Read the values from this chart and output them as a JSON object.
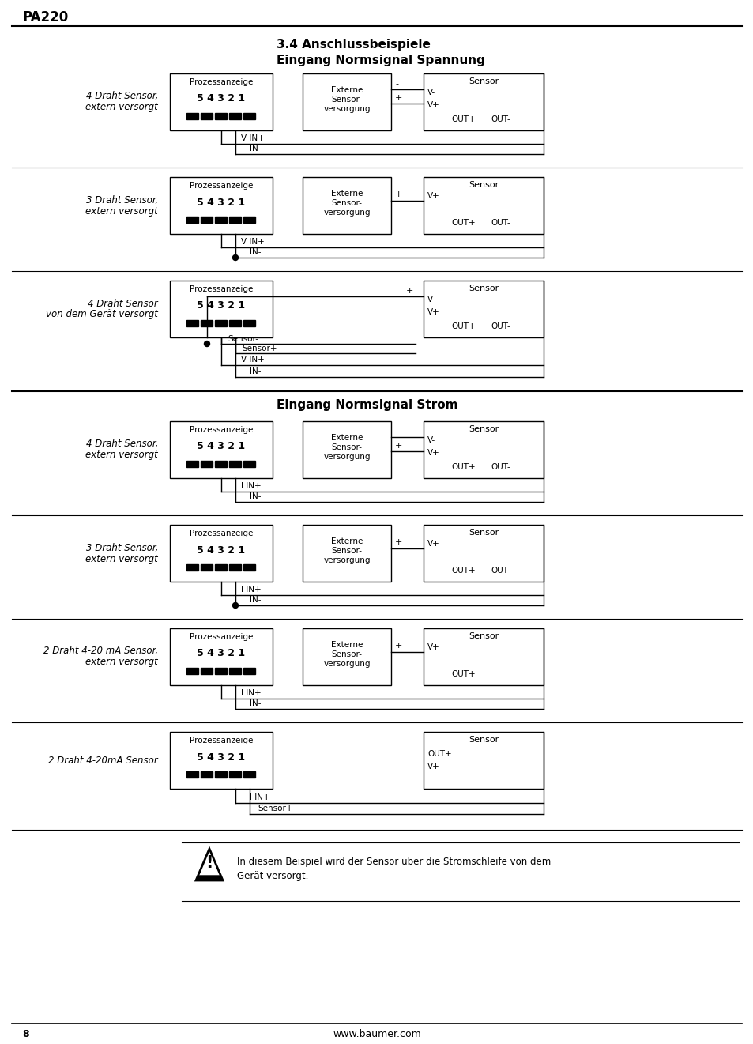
{
  "title_header": "PA220",
  "section_title": "3.4 Anschlussbeispiele",
  "subsection1": "Eingang Normsignal Spannung",
  "subsection2": "Eingang Normsignal Strom",
  "footer_page": "8",
  "footer_url": "www.baumer.com",
  "warning_text": "In diesem Beispiel wird der Sensor über die Stromschleife von dem\nGerät versorgt.",
  "bg_color": "#ffffff",
  "line_color": "#000000",
  "text_color": "#000000"
}
